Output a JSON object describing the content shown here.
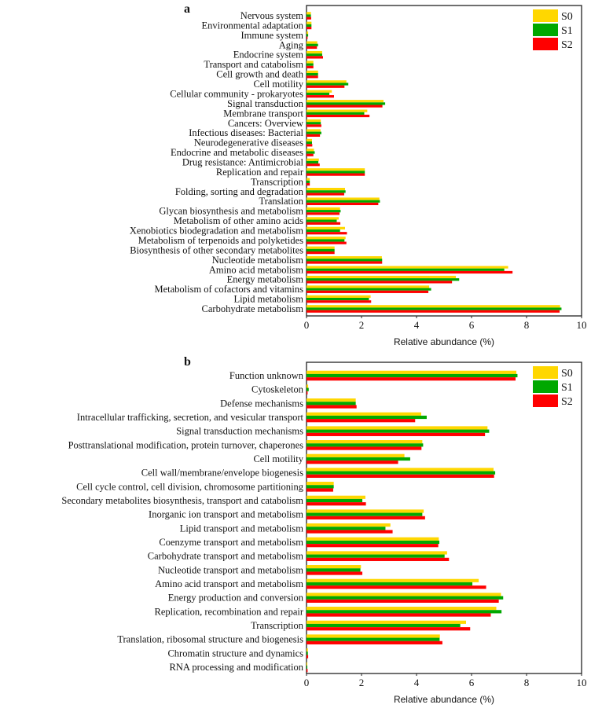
{
  "colors": {
    "S0": "#FFD700",
    "S1": "#00A800",
    "S2": "#FF0000"
  },
  "chart_data": [
    {
      "type": "bar",
      "orientation": "horizontal",
      "panel_label": "a",
      "xlabel": "Relative abundance (%)",
      "xlim": [
        0,
        10
      ],
      "xticks": [
        "0",
        "2",
        "4",
        "6",
        "8",
        "10"
      ],
      "grid": false,
      "legend": "top-right",
      "categories": [
        "Nervous system",
        "Environmental adaptation",
        "Immune system",
        "Aging",
        "Endocrine system",
        "Transport and catabolism",
        "Cell growth and death",
        "Cell motility",
        "Cellular community - prokaryotes",
        "Signal transduction",
        "Membrane transport",
        "Cancers: Overview",
        "Infectious diseases: Bacterial",
        "Neurodegenerative diseases",
        "Endocrine and metabolic diseases",
        "Drug resistance: Antimicrobial",
        "Replication and repair",
        "Transcription",
        "Folding, sorting and degradation",
        "Translation",
        "Glycan biosynthesis and metabolism",
        "Metabolism of other amino acids",
        "Xenobiotics biodegradation and metabolism",
        "Metabolism of terpenoids and polyketides",
        "Biosynthesis of other secondary metabolites",
        "Nucleotide metabolism",
        "Amino acid metabolism",
        "Energy metabolism",
        "Metabolism of cofactors and vitamins",
        "Lipid metabolism",
        "Carbohydrate metabolism"
      ],
      "series": [
        {
          "name": "S0",
          "values": [
            0.16,
            0.18,
            0.06,
            0.39,
            0.57,
            0.25,
            0.42,
            1.45,
            0.92,
            2.8,
            2.21,
            0.52,
            0.51,
            0.2,
            0.27,
            0.45,
            2.12,
            0.12,
            1.4,
            2.65,
            1.22,
            1.17,
            1.4,
            1.42,
            1.02,
            2.74,
            7.33,
            5.43,
            4.46,
            2.33,
            9.22
          ]
        },
        {
          "name": "S1",
          "values": [
            0.16,
            0.18,
            0.06,
            0.42,
            0.57,
            0.25,
            0.42,
            1.52,
            0.83,
            2.86,
            2.1,
            0.52,
            0.54,
            0.2,
            0.3,
            0.43,
            2.12,
            0.12,
            1.42,
            2.67,
            1.24,
            1.1,
            1.22,
            1.38,
            1.02,
            2.75,
            7.19,
            5.55,
            4.53,
            2.27,
            9.27
          ]
        },
        {
          "name": "S2",
          "values": [
            0.17,
            0.18,
            0.04,
            0.38,
            0.6,
            0.25,
            0.42,
            1.38,
            1.0,
            2.76,
            2.29,
            0.54,
            0.49,
            0.21,
            0.25,
            0.48,
            2.12,
            0.12,
            1.37,
            2.61,
            1.2,
            1.23,
            1.47,
            1.45,
            1.02,
            2.75,
            7.49,
            5.29,
            4.43,
            2.35,
            9.2
          ]
        }
      ]
    },
    {
      "type": "bar",
      "orientation": "horizontal",
      "panel_label": "b",
      "xlabel": "Relative abundance (%)",
      "xlim": [
        0,
        10
      ],
      "xticks": [
        "0",
        "2",
        "4",
        "6",
        "8",
        "10"
      ],
      "grid": false,
      "legend": "top-right",
      "categories": [
        "Function unknown",
        "Cytoskeleton",
        "Defense mechanisms",
        "Intracellular trafficking, secretion, and vesicular transport",
        "Signal transduction mechanisms",
        "Posttranslational modification, protein turnover, chaperones",
        "Cell motility",
        "Cell wall/membrane/envelope biogenesis",
        "Cell cycle control, cell division, chromosome partitioning",
        "Secondary metabolites biosynthesis, transport and catabolism",
        "Inorganic ion transport and metabolism",
        "Lipid transport and metabolism",
        "Coenzyme transport and metabolism",
        "Carbohydrate transport and metabolism",
        "Nucleotide transport and metabolism",
        "Amino acid transport and metabolism",
        "Energy production and conversion",
        "Replication, recombination and repair",
        "Transcription",
        "Translation, ribosomal structure and biogenesis",
        "Chromatin structure and dynamics",
        "RNA processing and modification"
      ],
      "series": [
        {
          "name": "S0",
          "values": [
            7.63,
            0.06,
            1.79,
            4.17,
            6.58,
            4.21,
            3.56,
            6.8,
            0.99,
            2.14,
            4.26,
            3.05,
            4.81,
            5.11,
            1.98,
            6.26,
            7.07,
            6.9,
            5.8,
            4.85,
            0.05,
            0.03
          ]
        },
        {
          "name": "S1",
          "values": [
            7.67,
            0.08,
            1.79,
            4.37,
            6.64,
            4.24,
            3.77,
            6.86,
            0.99,
            2.03,
            4.21,
            2.87,
            4.83,
            5.02,
            1.96,
            6.03,
            7.15,
            7.09,
            5.59,
            4.84,
            0.05,
            0.03
          ]
        },
        {
          "name": "S2",
          "values": [
            7.6,
            0.04,
            1.82,
            3.95,
            6.49,
            4.18,
            3.33,
            6.82,
            0.97,
            2.16,
            4.31,
            3.13,
            4.79,
            5.18,
            2.03,
            6.53,
            6.99,
            6.7,
            5.95,
            4.94,
            0.06,
            0.04
          ]
        }
      ]
    }
  ]
}
